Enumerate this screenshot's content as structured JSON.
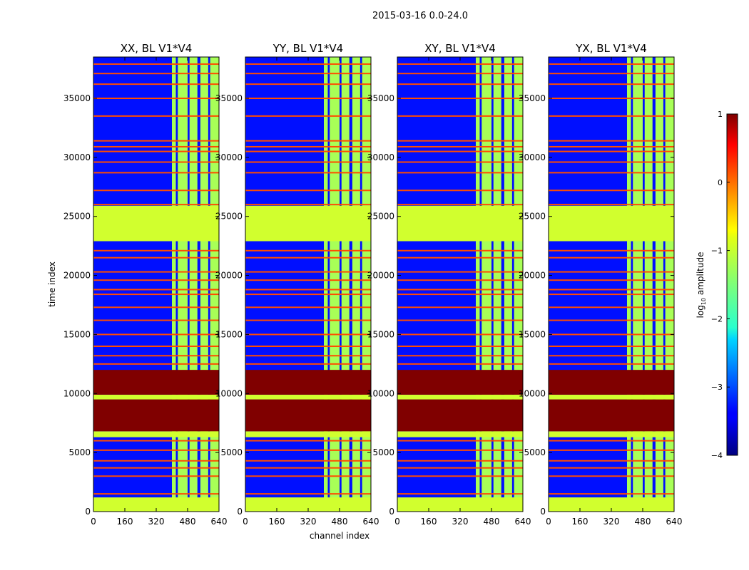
{
  "chart_data": {
    "type": "heatmap",
    "suptitle": "2015-03-16 0.0-24.0",
    "xlabel": "channel index",
    "ylabel": "time index",
    "xlim": [
      0,
      640
    ],
    "ylim": [
      0,
      38500
    ],
    "x_ticks": [
      0,
      160,
      320,
      480,
      640
    ],
    "y_ticks": [
      0,
      5000,
      10000,
      15000,
      20000,
      25000,
      30000,
      35000
    ],
    "panels": [
      {
        "title": "XX, BL V1*V4"
      },
      {
        "title": "YY, BL V1*V4"
      },
      {
        "title": "XY, BL V1*V4"
      },
      {
        "title": "YX, BL V1*V4"
      }
    ],
    "colorbar": {
      "label_prefix": "log",
      "label_sub": "10",
      "label_suffix": " amplitude",
      "range": [
        -4,
        1
      ],
      "ticks": [
        "1",
        "0",
        "−1",
        "−2",
        "−3",
        "−4"
      ],
      "colormap": "jet"
    },
    "row_bands": [
      {
        "t0": 0,
        "t1": 1200,
        "value": -1.1
      },
      {
        "t0": 6300,
        "t1": 6800,
        "value": -1.1
      },
      {
        "t0": 6800,
        "t1": 9500,
        "value": 1.0
      },
      {
        "t0": 9500,
        "t1": 9900,
        "value": -1.1
      },
      {
        "t0": 9900,
        "t1": 12000,
        "value": 1.0
      },
      {
        "t0": 22900,
        "t1": 25900,
        "value": -1.1
      }
    ],
    "rfi_channel_bands": [
      [
        400,
        420
      ],
      [
        430,
        480
      ],
      [
        490,
        530
      ],
      [
        545,
        585
      ],
      [
        595,
        640
      ]
    ],
    "rfi_channel_value": -1.3,
    "background_value": -3.3,
    "flagged_row_value": 0.0,
    "flagged_rows": [
      1500,
      3000,
      3700,
      4300,
      5200,
      6000,
      12500,
      13200,
      14000,
      15000,
      16200,
      17300,
      18400,
      18800,
      19600,
      20300,
      21500,
      22100,
      26000,
      27200,
      28700,
      29600,
      30500,
      30900,
      31400,
      33500,
      35000,
      36200,
      37100,
      37900
    ]
  }
}
